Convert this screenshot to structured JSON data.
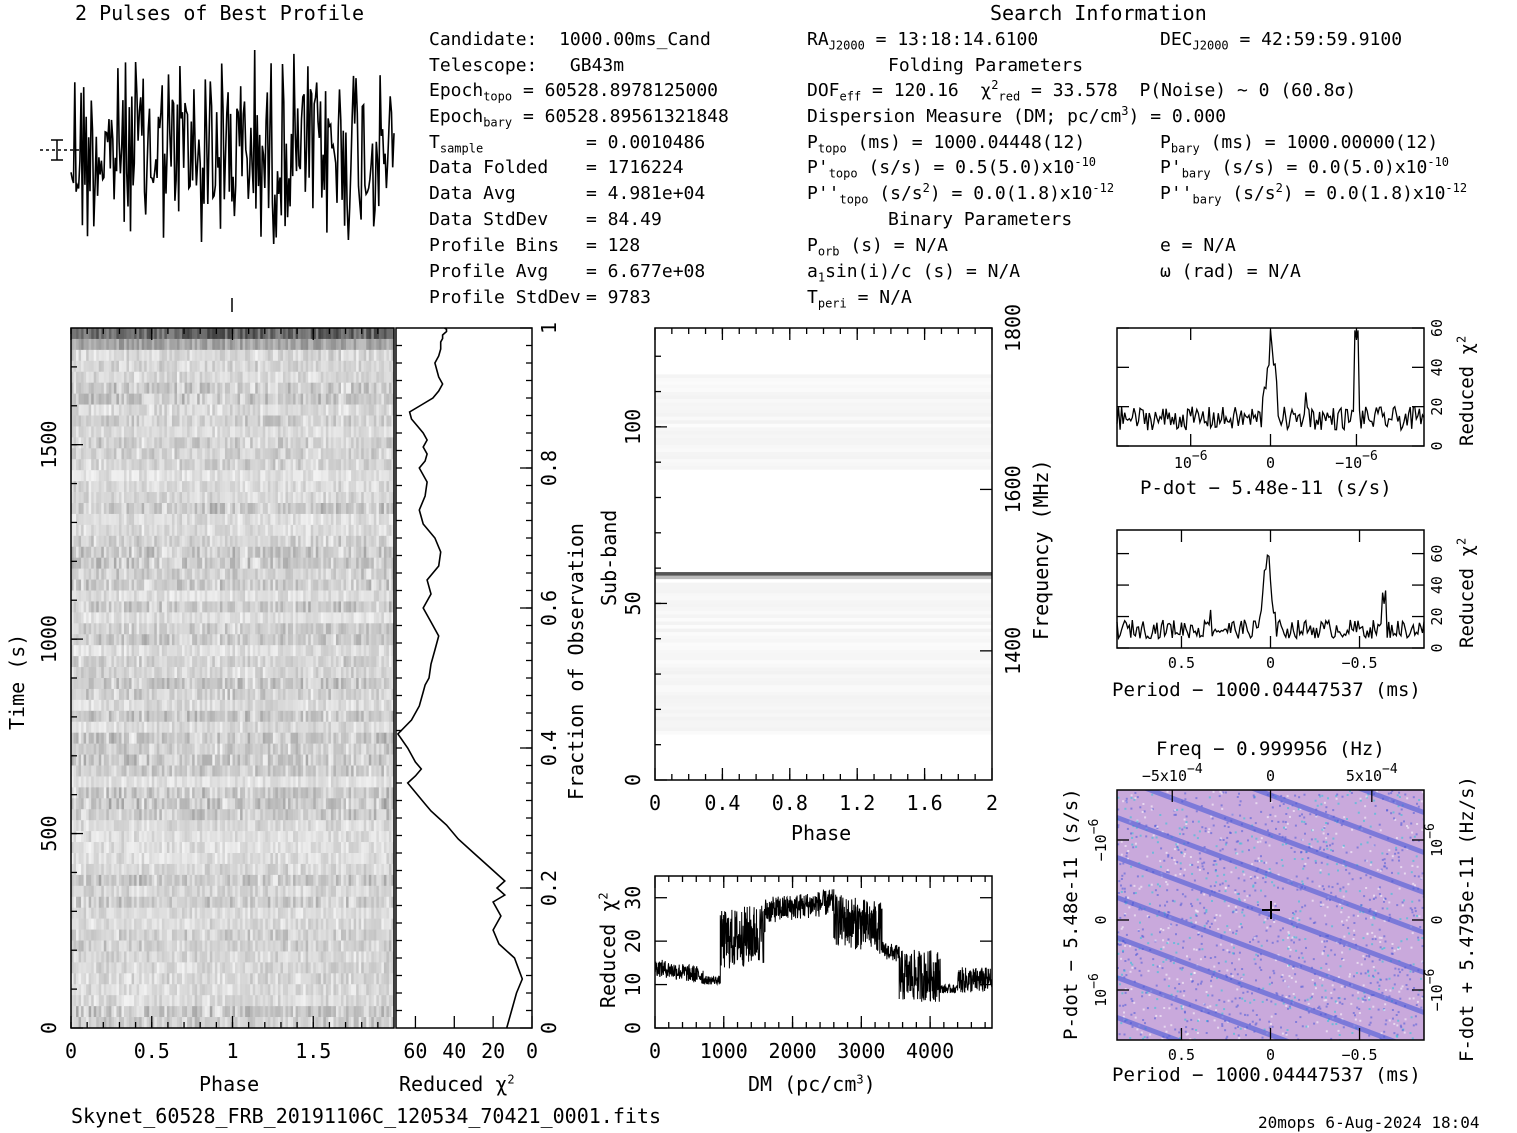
{
  "profile_title": "2 Pulses of Best Profile",
  "search_info_title": "Search Information",
  "folding_params_title": "Folding Parameters",
  "binary_params_title": "Binary Parameters",
  "info": {
    "candidate_label": "Candidate:",
    "candidate_value": "1000.00ms_Cand",
    "telescope_label": "Telescope:",
    "telescope_value": "GB43m",
    "epoch_topo_label": "Epoch",
    "epoch_topo_sub": "topo",
    "epoch_topo_value": "= 60528.8978125000",
    "epoch_bary_label": "Epoch",
    "epoch_bary_sub": "bary",
    "epoch_bary_value": "= 60528.89561321848",
    "tsample_label": "T",
    "tsample_sub": "sample",
    "tsample_value": "=   0.0010486",
    "data_folded_label": "Data Folded",
    "data_folded_value": "=   1716224",
    "data_avg_label": "Data Avg",
    "data_avg_value": "=   4.981e+04",
    "data_stddev_label": "Data StdDev",
    "data_stddev_value": "=   84.49",
    "profile_bins_label": "Profile Bins",
    "profile_bins_value": "=   128",
    "profile_avg_label": "Profile Avg",
    "profile_avg_value": "=   6.677e+08",
    "profile_stddev_label": "Profile StdDev",
    "profile_stddev_value": "=   9783",
    "ra_label": "RA",
    "ra_sub": "J2000",
    "ra_value": "= 13:18:14.6100",
    "dec_label": "DEC",
    "dec_sub": "J2000",
    "dec_value": "= 42:59:59.9100",
    "dof_label": "DOF",
    "dof_sub": "eff",
    "dof_value": "= 120.16",
    "chi_label": "χ",
    "chi_sup": "2",
    "chi_sub": "red",
    "chi_value": "= 33.578",
    "pnoise_text": "P(Noise) ~ 0   (60.8σ)",
    "dm_text_a": "Dispersion Measure (DM; pc/cm",
    "dm_text_sup": "3",
    "dm_text_b": ") = 0.000",
    "ptopo_label": "P",
    "ptopo_sub": "topo",
    "ptopo_value": "(ms) =  1000.04448(12)",
    "pbary_label": "P",
    "pbary_sub": "bary",
    "pbary_value": "(ms) =  1000.00000(12)",
    "pdtopo_label": "P'",
    "pdtopo_sub": "topo",
    "pdtopo_value": "(s/s) =  0.5(5.0)x10",
    "pdtopo_exp": "-10",
    "pdbary_label": "P'",
    "pdbary_sub": "bary",
    "pdbary_value": "(s/s) = 0.0(5.0)x10",
    "pdbary_exp": "-10",
    "pddtopo_label": "P''",
    "pddtopo_sub": "topo",
    "pddtopo_value_a": "(s/s",
    "pddtopo_value_sup": "2",
    "pddtopo_value_b": ") = 0.0(1.8)x10",
    "pddtopo_exp": "-12",
    "pddbary_label": "P''",
    "pddbary_sub": "bary",
    "pddbary_value_a": "(s/s",
    "pddbary_value_sup": "2",
    "pddbary_value_b": ") = 0.0(1.8)x10",
    "pddbary_exp": "-12",
    "porb_label": "P",
    "porb_sub": "orb",
    "porb_value": "(s) = N/A",
    "e_text": "e = N/A",
    "a1_text": "a",
    "a1_sub": "1",
    "a1_value": "sin(i)/c (s) = N/A",
    "omega_text": "ω (rad) = N/A",
    "tperi_label": "T",
    "tperi_sub": "peri",
    "tperi_value": "= N/A"
  },
  "footer": {
    "filename": "Skynet_60528_FRB_20191106C_120534_70421_0001.fits",
    "stamp": "20mops   6-Aug-2024 18:04"
  },
  "colors": {
    "axis": "#000000",
    "greyscale_high": "#2a2a2a",
    "greyscale_low": "#f2f2f2",
    "ppdot_base": "#c9a9dc",
    "ppdot_blue": "#4a5ad8",
    "ppdot_cyan": "#27c7d8"
  },
  "chart_data": [
    {
      "id": "pulse_profile",
      "type": "line",
      "title": "2 Pulses of Best Profile",
      "xlabel": "",
      "ylabel": "",
      "xlim": [
        0,
        2
      ],
      "note_points": 256,
      "error_bar": true
    },
    {
      "id": "time_phase",
      "type": "heatmap",
      "xlabel": "Phase",
      "ylabel": "Time (s)",
      "xlim": [
        0,
        2
      ],
      "ylim": [
        0,
        1800
      ],
      "x_ticks": [
        "0",
        "0.5",
        "1",
        "1.5"
      ],
      "y_ticks": [
        "0",
        "500",
        "1000",
        "1500"
      ]
    },
    {
      "id": "time_chi2",
      "type": "line",
      "xlabel": "Reduced χ",
      "xlabel_sup": "2",
      "ylabel": "Fraction of Observation",
      "xlim": [
        70,
        0
      ],
      "ylim": [
        0,
        1
      ],
      "x_ticks": [
        "60",
        "40",
        "20",
        "0"
      ],
      "y_ticks": [
        "0",
        "0.2",
        "0.4",
        "0.6",
        "0.8",
        "1"
      ],
      "points_chi2": [
        13,
        10,
        8,
        5,
        9,
        17,
        20,
        16,
        20,
        14,
        18,
        14,
        22,
        30,
        38,
        44,
        48,
        52,
        55,
        58,
        64,
        60,
        57,
        60,
        64,
        69,
        62,
        58,
        56,
        55,
        53,
        52,
        50,
        48,
        52,
        56,
        52,
        54,
        48,
        47,
        50,
        56,
        58,
        55,
        54,
        58,
        55,
        54,
        56,
        54,
        56,
        59,
        62,
        63,
        57,
        51,
        48,
        46,
        48,
        49,
        50,
        48,
        47,
        47,
        46,
        46,
        44,
        44,
        45
      ],
      "points_frac": [
        0.0,
        0.03,
        0.05,
        0.07,
        0.1,
        0.12,
        0.14,
        0.16,
        0.18,
        0.19,
        0.2,
        0.21,
        0.23,
        0.25,
        0.27,
        0.29,
        0.3,
        0.31,
        0.32,
        0.33,
        0.35,
        0.36,
        0.37,
        0.38,
        0.4,
        0.42,
        0.44,
        0.46,
        0.48,
        0.49,
        0.5,
        0.52,
        0.54,
        0.56,
        0.58,
        0.6,
        0.62,
        0.64,
        0.66,
        0.68,
        0.7,
        0.72,
        0.74,
        0.76,
        0.78,
        0.8,
        0.81,
        0.82,
        0.83,
        0.84,
        0.85,
        0.86,
        0.87,
        0.88,
        0.89,
        0.9,
        0.91,
        0.92,
        0.93,
        0.94,
        0.95,
        0.96,
        0.97,
        0.98,
        0.985,
        0.99,
        0.995,
        0.998,
        1.0
      ]
    },
    {
      "id": "subband_phase",
      "type": "heatmap",
      "xlabel": "Phase",
      "ylabel": "Sub-band",
      "ylabel_right": "Frequency (MHz)",
      "xlim": [
        0,
        2
      ],
      "ylim": [
        0,
        128
      ],
      "x_ticks": [
        "0",
        "0.4",
        "0.8",
        "1.2",
        "1.6",
        "2"
      ],
      "y_ticks": [
        "0",
        "50",
        "100"
      ],
      "y_ticks_right": [
        "1400",
        "1600",
        "1800"
      ],
      "bright_subband": 58
    },
    {
      "id": "dm_chi2",
      "type": "line",
      "xlabel": "DM (pc/cm",
      "xlabel_sup": "3",
      "xlabel_end": ")",
      "ylabel": "Reduced χ",
      "ylabel_sup": "2",
      "xlim": [
        0,
        4900
      ],
      "ylim": [
        0,
        35
      ],
      "x_ticks": [
        "0",
        "1000",
        "2000",
        "3000",
        "4000"
      ],
      "y_ticks": [
        "0",
        "10",
        "20",
        "30"
      ],
      "segments": [
        {
          "x": [
            0,
            700
          ],
          "y": [
            14,
            12
          ],
          "noise": 2
        },
        {
          "x": [
            700,
            950
          ],
          "y": [
            11,
            11
          ],
          "noise": 1
        },
        {
          "x": [
            950,
            1600
          ],
          "y": [
            20,
            22
          ],
          "noise": 7
        },
        {
          "x": [
            1600,
            2600
          ],
          "y": [
            27,
            29
          ],
          "noise": 3
        },
        {
          "x": [
            2600,
            3300
          ],
          "y": [
            25,
            23
          ],
          "noise": 6
        },
        {
          "x": [
            3300,
            3550
          ],
          "y": [
            18,
            17
          ],
          "noise": 2
        },
        {
          "x": [
            3550,
            4150
          ],
          "y": [
            12,
            12
          ],
          "noise": 6
        },
        {
          "x": [
            4150,
            4400
          ],
          "y": [
            9,
            9
          ],
          "noise": 1
        },
        {
          "x": [
            4400,
            4900
          ],
          "y": [
            11,
            11
          ],
          "noise": 3
        }
      ]
    },
    {
      "id": "pdot_chi2",
      "type": "line",
      "xlabel": "P-dot − 5.48e-11 (s/s)",
      "ylabel": "Reduced χ",
      "ylabel_sup": "2",
      "xlim": [
        -1.9,
        1.9
      ],
      "ylim": [
        0,
        60
      ],
      "x_ticks": [
        "10",
        "0",
        "−10"
      ],
      "x_ticks_exp": [
        "−6",
        "",
        "−6"
      ],
      "y_ticks": [
        "0",
        "20",
        "40",
        "60"
      ]
    },
    {
      "id": "period_chi2",
      "type": "line",
      "xlabel": "Period − 1000.04447537 (ms)",
      "ylabel": "Reduced χ",
      "ylabel_sup": "2",
      "xlim": [
        0.9,
        -0.9
      ],
      "ylim": [
        0,
        75
      ],
      "x_ticks": [
        "0.5",
        "0",
        "−0.5"
      ],
      "y_ticks": [
        "0",
        "20",
        "40",
        "60"
      ]
    },
    {
      "id": "p_pdot_plane",
      "type": "heatmap",
      "title": "Freq − 0.999956 (Hz)",
      "xlabel": "Period − 1000.04447537 (ms)",
      "ylabel": "P-dot − 5.48e-11 (s/s)",
      "ylabel_right": "F-dot + 5.4795e-11 (Hz/s)",
      "x_ticks": [
        "0.5",
        "0",
        "−0.5"
      ],
      "top_ticks": [
        "−5x10",
        "0",
        "5x10"
      ],
      "top_ticks_exp": [
        "−4",
        "",
        "−4"
      ],
      "y_ticks": [
        "10",
        "0",
        "−10"
      ],
      "y_ticks_exp": [
        "−6",
        "",
        "−6"
      ],
      "y_ticks_right": [
        "−10",
        "0",
        "10"
      ],
      "y_ticks_right_exp": [
        "−6",
        "",
        "−6"
      ]
    }
  ]
}
